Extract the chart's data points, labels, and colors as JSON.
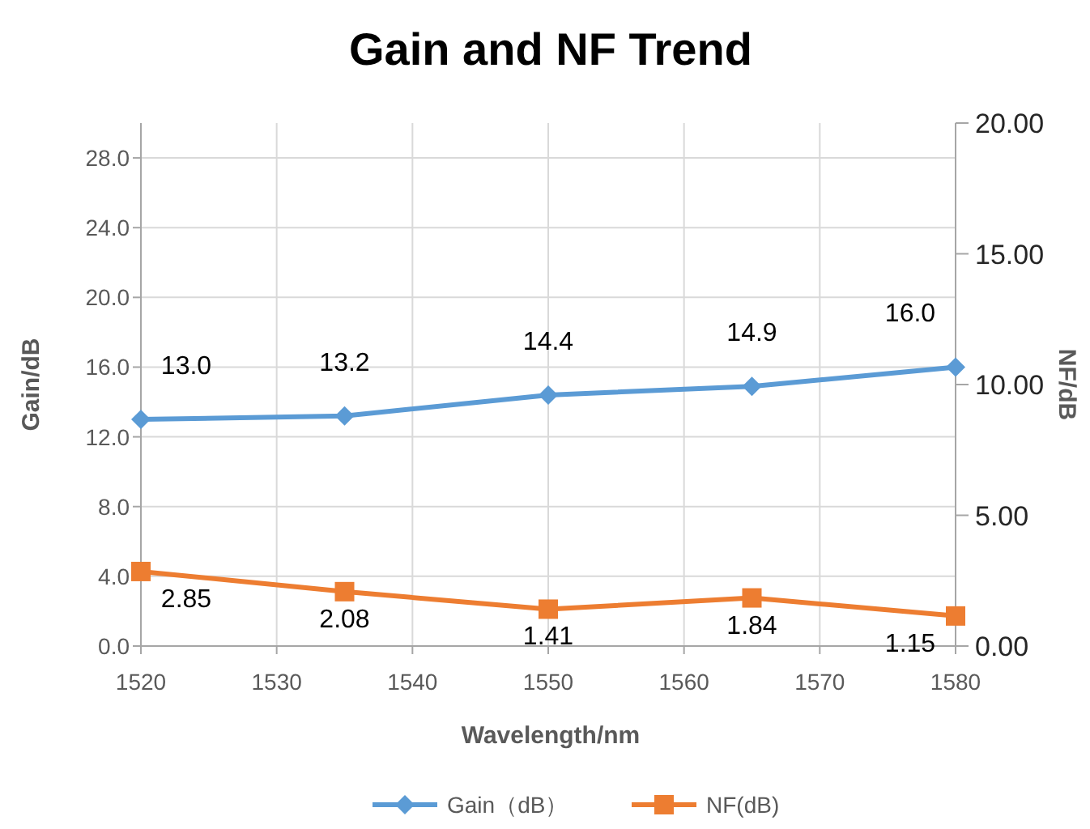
{
  "chart_data": {
    "type": "line",
    "title": "Gain and NF Trend",
    "xlabel": "Wavelength/nm",
    "ylabel": "Gain/dB",
    "y2label": "NF/dB",
    "x": [
      1520,
      1535,
      1550,
      1565,
      1580
    ],
    "series": [
      {
        "name": "Gain（dB）",
        "color": "#5b9bd5",
        "marker": "diamond",
        "values": [
          13.0,
          13.2,
          14.4,
          14.9,
          16.0
        ],
        "value_labels": [
          "13.0",
          "13.2",
          "14.4",
          "14.9",
          "16.0"
        ]
      },
      {
        "name": "NF(dB)",
        "color": "#ed7d31",
        "marker": "square",
        "axis": "y2",
        "values": [
          2.85,
          2.08,
          1.41,
          1.84,
          1.15
        ],
        "value_labels": [
          "2.85",
          "2.08",
          "1.41",
          "1.84",
          "1.15"
        ]
      }
    ],
    "xlim": [
      1520,
      1580
    ],
    "xticks": [
      1520,
      1530,
      1540,
      1550,
      1560,
      1570,
      1580
    ],
    "ylim": [
      0,
      30
    ],
    "yticks": [
      {
        "value": 0,
        "label": "0.0"
      },
      {
        "value": 4,
        "label": "4.0"
      },
      {
        "value": 8,
        "label": "8.0"
      },
      {
        "value": 12,
        "label": "12.0"
      },
      {
        "value": 16,
        "label": "16.0"
      },
      {
        "value": 20,
        "label": "20.0"
      },
      {
        "value": 24,
        "label": "24.0"
      },
      {
        "value": 28,
        "label": "28.0"
      }
    ],
    "y2lim": [
      0,
      20
    ],
    "y2ticks": [
      {
        "value": 0,
        "label": "0.00"
      },
      {
        "value": 5,
        "label": "5.00"
      },
      {
        "value": 10,
        "label": "10.00"
      },
      {
        "value": 15,
        "label": "15.00"
      },
      {
        "value": 20,
        "label": "20.00"
      }
    ],
    "grid": true,
    "legend": "bottom",
    "line_style": "solid"
  }
}
